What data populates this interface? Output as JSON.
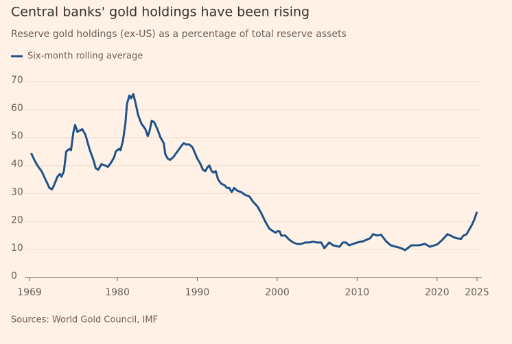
{
  "chart_data": {
    "type": "line",
    "title": "Central banks' gold holdings have been rising",
    "subtitle": "Reserve gold holdings (ex-US) as a percentage of total reserve assets",
    "source": "Sources: World Gold Council, IMF",
    "x": [
      1969.2,
      1969.6,
      1970,
      1970.5,
      1971,
      1971.5,
      1971.8,
      1972,
      1972.5,
      1972.8,
      1973,
      1973.3,
      1973.6,
      1974,
      1974.2,
      1974.5,
      1974.7,
      1975,
      1975.3,
      1975.6,
      1976,
      1976.5,
      1977,
      1977.3,
      1977.6,
      1978,
      1978.5,
      1978.8,
      1979.2,
      1979.6,
      1979.8,
      1980.2,
      1980.4,
      1980.7,
      1981,
      1981.2,
      1981.5,
      1981.7,
      1982,
      1982.3,
      1982.6,
      1983,
      1983.5,
      1983.8,
      1984,
      1984.3,
      1984.6,
      1985,
      1985.4,
      1985.8,
      1986,
      1986.3,
      1986.6,
      1987,
      1987.5,
      1988,
      1988.3,
      1988.6,
      1989,
      1989.4,
      1989.7,
      1990,
      1990.4,
      1990.7,
      1991,
      1991.3,
      1991.5,
      1991.8,
      1992,
      1992.3,
      1992.6,
      1993,
      1993.4,
      1993.7,
      1994,
      1994.3,
      1994.6,
      1995,
      1995.5,
      1996,
      1996.5,
      1997,
      1997.5,
      1998,
      1998.5,
      1999,
      1999.5,
      1999.8,
      2000,
      2000.3,
      2000.5,
      2001,
      2001.5,
      2002,
      2002.5,
      2003,
      2003.5,
      2004,
      2004.5,
      2005,
      2005.5,
      2005.9,
      2006.5,
      2007,
      2007.8,
      2008.2,
      2008.6,
      2009,
      2009.5,
      2010,
      2010.8,
      2011.6,
      2012,
      2012.5,
      2013,
      2013.6,
      2014.2,
      2015.5,
      2016,
      2016.8,
      2017.7,
      2018.5,
      2019.1,
      2020,
      2020.5,
      2021,
      2021.3,
      2021.7,
      2022,
      2022.5,
      2023,
      2023.3,
      2023.7,
      2024,
      2024.4,
      2024.7,
      2025
    ],
    "series": [
      {
        "name": "Six-month rolling average",
        "color": "#1f5289",
        "values": [
          44.5,
          42,
          40,
          38,
          35,
          32,
          31.5,
          32.5,
          36,
          37,
          36,
          38,
          45,
          46,
          45.5,
          52,
          54.5,
          52,
          52.5,
          53,
          51,
          46,
          42,
          39,
          38.5,
          40.5,
          40,
          39.5,
          41,
          43,
          45,
          46,
          45.5,
          49,
          55,
          62,
          65,
          64,
          65.5,
          62,
          58,
          55,
          53,
          50.5,
          52,
          56,
          55.5,
          53,
          50,
          48,
          44,
          42.5,
          42,
          43,
          45,
          47,
          48,
          47.5,
          47.5,
          46.5,
          44.5,
          42.5,
          40.5,
          38.5,
          38,
          39.5,
          40,
          38,
          37.5,
          38,
          35,
          33.5,
          33,
          32,
          32,
          30.5,
          32,
          31,
          30.5,
          29.5,
          29,
          27,
          25.5,
          23,
          20,
          17.5,
          16.5,
          16,
          16.5,
          16.5,
          15,
          15,
          13.5,
          12.5,
          12,
          12,
          12.5,
          12.5,
          12.8,
          12.5,
          12.5,
          10.5,
          12.5,
          11.5,
          11,
          12.5,
          12.5,
          11.5,
          12,
          12.5,
          13,
          14,
          15.5,
          15,
          15.3,
          13,
          11.5,
          10.5,
          9.8,
          11.5,
          11.5,
          12,
          11,
          11.8,
          13,
          14.5,
          15.5,
          15,
          14.5,
          14,
          13.8,
          15,
          15.5,
          17,
          19,
          21,
          23.5
        ]
      }
    ],
    "xlim": [
      1968.4,
      2025.6
    ],
    "xticks": [
      1969,
      1980,
      1990,
      2000,
      2010,
      2020,
      2025
    ],
    "ylim": [
      0,
      70
    ],
    "yticks": [
      0,
      10,
      20,
      30,
      40,
      50,
      60,
      70
    ],
    "grid": true
  }
}
